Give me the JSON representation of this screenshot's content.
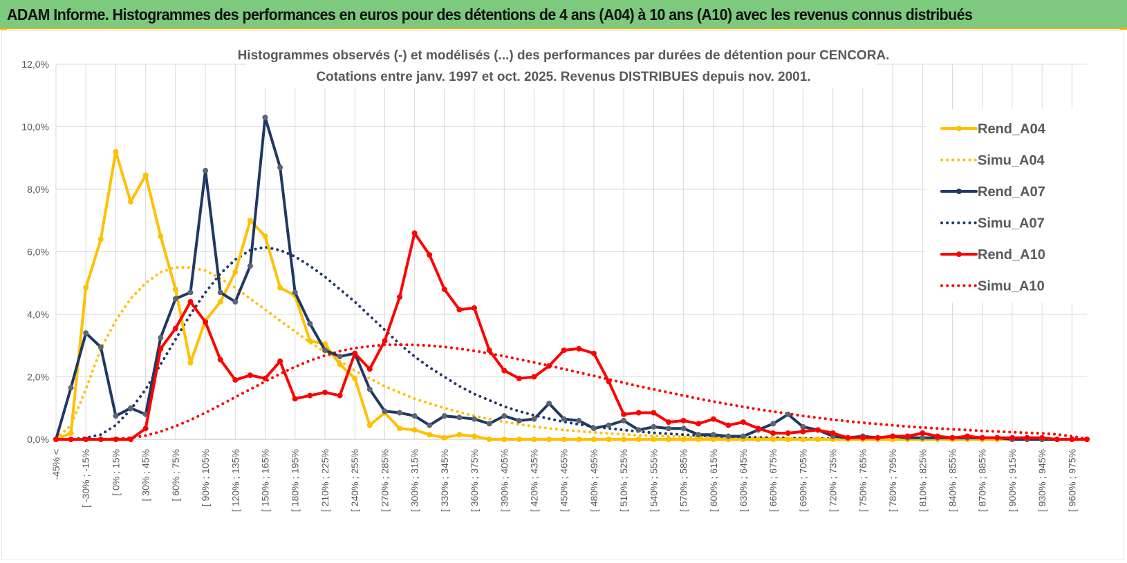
{
  "banner": {
    "title": "ADAM Informe. Histogrammes des performances en euros pour des détentions de 4 ans (A04) à 10 ans (A10) avec les revenus connus distribués",
    "background": "#7dc97d",
    "accent": "#e8b400"
  },
  "chart_data": {
    "type": "line",
    "title": "Histogrammes observés (-) et modélisés (...) des performances par durées de détention pour CENCORA.",
    "subtitle": "Cotations entre janv. 1997 et oct. 2025.  Revenus DISTRIBUES depuis nov. 2001.",
    "ylim": [
      0,
      12
    ],
    "y_ticks": [
      "0,0%",
      "2,0%",
      "4,0%",
      "6,0%",
      "8,0%",
      "10,0%",
      "12,0%"
    ],
    "x_tick_labels": [
      "-45% <",
      "[ -30% ; -15%",
      "[ 0% ; 15%",
      "[ 30% ; 45%",
      "[ 60% ; 75%",
      "[ 90% ; 105%",
      "[ 120% ; 135%",
      "[ 150% ; 165%",
      "[ 180% ; 195%",
      "[ 210% ; 225%",
      "[ 240% ; 255%",
      "[ 270% ; 285%",
      "[ 300% ; 315%",
      "[ 330% ; 345%",
      "[ 360% ; 375%",
      "[ 390% ; 405%",
      "[ 420% ; 435%",
      "[ 450% ; 465%",
      "[ 480% ; 495%",
      "[ 510% ; 525%",
      "[ 540% ; 555%",
      "[ 570% ; 585%",
      "[ 600% ; 615%",
      "[ 630% ; 645%",
      "[ 660% ; 675%",
      "[ 690% ; 705%",
      "[ 720% ; 735%",
      "[ 750% ; 765%",
      "[ 780% ; 795%",
      "[ 810% ; 825%",
      "[ 840% ; 855%",
      "[ 870% ; 885%",
      "[ 900% ; 915%",
      "[ 930% ; 945%",
      "[ 960% ; 975%"
    ],
    "n_points": 70,
    "legend_position": "right",
    "series": [
      {
        "name": "Rend_A04",
        "style": "solid",
        "color": "#ffc000",
        "values": [
          0.0,
          0.2,
          4.85,
          6.4,
          9.2,
          7.6,
          8.45,
          6.5,
          4.8,
          2.45,
          3.8,
          4.4,
          5.35,
          7.0,
          6.5,
          4.85,
          4.6,
          3.15,
          3.05,
          2.4,
          1.95,
          0.45,
          0.85,
          0.35,
          0.3,
          0.15,
          0.05,
          0.15,
          0.1,
          0,
          0,
          0,
          0,
          0,
          0,
          0,
          0,
          0,
          0,
          0,
          0,
          0,
          0,
          0,
          0,
          0,
          0,
          0,
          0,
          0,
          0,
          0,
          0,
          0,
          0,
          0,
          0,
          0,
          0,
          0,
          0,
          0,
          0,
          0,
          0,
          0,
          0,
          0,
          0,
          0
        ]
      },
      {
        "name": "Simu_A04",
        "style": "dotted",
        "color": "#ffc000",
        "values": [
          0.02,
          0.45,
          1.6,
          2.9,
          3.8,
          4.5,
          5.0,
          5.35,
          5.5,
          5.5,
          5.4,
          5.15,
          4.85,
          4.5,
          4.15,
          3.8,
          3.45,
          3.1,
          2.8,
          2.5,
          2.2,
          1.95,
          1.7,
          1.5,
          1.3,
          1.15,
          1.0,
          0.87,
          0.75,
          0.65,
          0.56,
          0.48,
          0.41,
          0.35,
          0.3,
          0.26,
          0.22,
          0.19,
          0.16,
          0.13,
          0.11,
          0.1,
          0.08,
          0.07,
          0.06,
          0.05,
          0.04,
          0.03,
          0.03,
          0.02,
          0.02,
          0.02,
          0.01,
          0.01,
          0.01,
          0,
          0,
          0,
          0,
          0,
          0,
          0,
          0,
          0,
          0,
          0,
          0,
          0,
          0,
          0
        ]
      },
      {
        "name": "Rend_A07",
        "style": "solid",
        "color": "#1f3864",
        "values": [
          0.0,
          1.65,
          3.4,
          2.95,
          0.75,
          1.0,
          0.8,
          3.25,
          4.5,
          4.7,
          8.6,
          4.7,
          4.4,
          5.55,
          10.3,
          8.7,
          4.7,
          3.7,
          2.85,
          2.65,
          2.75,
          1.6,
          0.9,
          0.85,
          0.75,
          0.45,
          0.75,
          0.7,
          0.65,
          0.5,
          0.75,
          0.6,
          0.65,
          1.15,
          0.65,
          0.6,
          0.35,
          0.45,
          0.6,
          0.3,
          0.4,
          0.35,
          0.35,
          0.15,
          0.15,
          0.1,
          0.1,
          0.3,
          0.5,
          0.8,
          0.4,
          0.3,
          0.1,
          0.05,
          0.1,
          0.05,
          0.1,
          0.05,
          0.05,
          0.05,
          0.05,
          0.05,
          0.05,
          0.05,
          0,
          0,
          0,
          0,
          0,
          0
        ]
      },
      {
        "name": "Simu_A07",
        "style": "dotted",
        "color": "#1f3864",
        "values": [
          0.0,
          0.0,
          0.05,
          0.15,
          0.45,
          0.95,
          1.6,
          2.4,
          3.2,
          4.0,
          4.7,
          5.3,
          5.75,
          6.05,
          6.15,
          6.05,
          5.85,
          5.55,
          5.2,
          4.8,
          4.4,
          3.95,
          3.5,
          3.05,
          2.65,
          2.3,
          2.0,
          1.7,
          1.45,
          1.25,
          1.05,
          0.9,
          0.77,
          0.66,
          0.56,
          0.48,
          0.41,
          0.35,
          0.3,
          0.25,
          0.21,
          0.18,
          0.15,
          0.12,
          0.1,
          0.08,
          0.07,
          0.06,
          0.05,
          0.04,
          0.03,
          0.03,
          0.02,
          0.02,
          0.02,
          0.01,
          0.01,
          0.01,
          0,
          0,
          0,
          0,
          0,
          0,
          0,
          0,
          0,
          0,
          0,
          0
        ]
      },
      {
        "name": "Rend_A10",
        "style": "solid",
        "color": "#ff0000",
        "values": [
          0.0,
          0.0,
          0.0,
          0.0,
          0.0,
          0.0,
          0.35,
          2.9,
          3.55,
          4.4,
          3.75,
          2.55,
          1.9,
          2.05,
          1.95,
          2.5,
          1.3,
          1.4,
          1.5,
          1.4,
          2.75,
          2.25,
          3.15,
          4.55,
          6.6,
          5.9,
          4.8,
          4.15,
          4.2,
          2.85,
          2.2,
          1.95,
          2.0,
          2.35,
          2.85,
          2.9,
          2.75,
          1.85,
          0.8,
          0.85,
          0.85,
          0.55,
          0.6,
          0.5,
          0.65,
          0.45,
          0.55,
          0.35,
          0.2,
          0.2,
          0.25,
          0.3,
          0.2,
          0.05,
          0.05,
          0.05,
          0.1,
          0.1,
          0.2,
          0.1,
          0.05,
          0.1,
          0.05,
          0.05,
          0.05,
          0.05,
          0.05,
          0.0,
          0.0,
          0.0
        ]
      },
      {
        "name": "Simu_A10",
        "style": "dotted",
        "color": "#ff0000",
        "values": [
          0.0,
          0.0,
          0.0,
          0.0,
          0.02,
          0.05,
          0.12,
          0.25,
          0.42,
          0.62,
          0.85,
          1.1,
          1.35,
          1.6,
          1.85,
          2.1,
          2.32,
          2.52,
          2.68,
          2.82,
          2.92,
          2.98,
          3.02,
          3.03,
          3.02,
          3.0,
          2.96,
          2.9,
          2.83,
          2.75,
          2.66,
          2.56,
          2.46,
          2.36,
          2.25,
          2.14,
          2.03,
          1.92,
          1.81,
          1.7,
          1.6,
          1.5,
          1.4,
          1.3,
          1.21,
          1.12,
          1.04,
          0.96,
          0.89,
          0.82,
          0.75,
          0.69,
          0.63,
          0.58,
          0.53,
          0.49,
          0.45,
          0.41,
          0.38,
          0.35,
          0.32,
          0.3,
          0.27,
          0.25,
          0.23,
          0.21,
          0.19,
          0.16,
          0.1,
          0.02
        ]
      }
    ]
  }
}
